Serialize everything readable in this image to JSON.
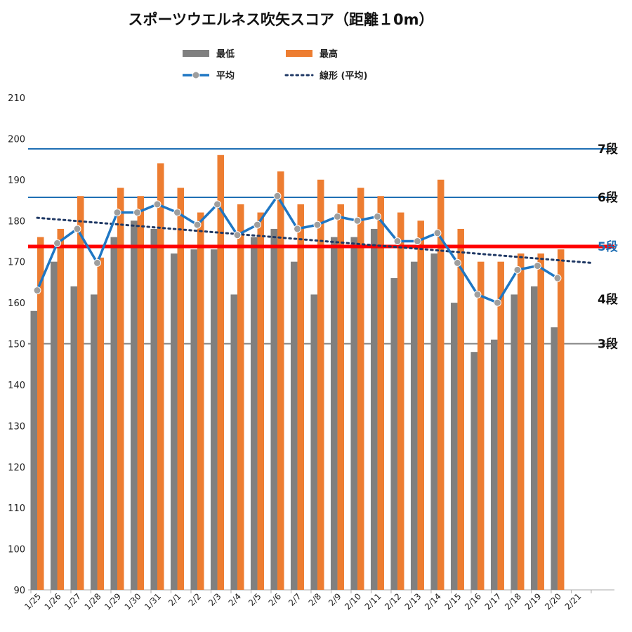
{
  "chart_data": {
    "type": "bar",
    "title": "スポーツウエルネス吹矢スコア（距離１0m）",
    "categories": [
      "1/25",
      "1/26",
      "1/27",
      "1/28",
      "1/29",
      "1/30",
      "1/31",
      "2/1",
      "2/2",
      "2/3",
      "2/4",
      "2/5",
      "2/6",
      "2/7",
      "2/8",
      "2/9",
      "2/10",
      "2/11",
      "2/12",
      "2/13",
      "2/14",
      "2/15",
      "2/16",
      "2/17",
      "2/18",
      "2/19",
      "2/20",
      "2/21"
    ],
    "series": [
      {
        "name": "最低",
        "type": "bar",
        "color": "#808080",
        "values": [
          158,
          170,
          164,
          162,
          176,
          180,
          178,
          172,
          173,
          173,
          162,
          176,
          178,
          170,
          162,
          176,
          176,
          178,
          166,
          170,
          172,
          160,
          148,
          151,
          162,
          164,
          154,
          null
        ]
      },
      {
        "name": "最高",
        "type": "bar",
        "color": "#ED7D31",
        "values": [
          176,
          178,
          186,
          171,
          188,
          186,
          194,
          188,
          182,
          196,
          184,
          182,
          192,
          184,
          190,
          184,
          188,
          186,
          182,
          180,
          190,
          178,
          170,
          170,
          172,
          172,
          173,
          null
        ]
      },
      {
        "name": "平均",
        "type": "line",
        "color": "#1F77C4",
        "values": [
          163,
          174.5,
          178,
          169.7,
          182,
          182,
          184,
          182,
          179,
          184,
          176.5,
          179,
          186,
          178,
          179,
          181,
          180,
          181,
          175,
          175,
          177,
          169.7,
          162,
          160,
          168,
          169,
          166,
          null
        ]
      },
      {
        "name": "線形 (平均)",
        "type": "trendline",
        "color": "#1F3864",
        "start": [
          0,
          180.7
        ],
        "end": [
          27.7,
          169.7
        ]
      }
    ],
    "ylim": [
      90,
      210
    ],
    "yticks": [
      "90",
      "100",
      "110",
      "120",
      "130",
      "140",
      "150",
      "160",
      "170",
      "180",
      "190",
      "200",
      "210"
    ],
    "legend_position": "top",
    "grid": false,
    "reference_lines": [
      {
        "label": "7段",
        "value": 197.5,
        "color": "#1F6FB4",
        "label_color": "#111111"
      },
      {
        "label": "6段",
        "value": 185.7,
        "color": "#1F6FB4",
        "label_color": "#111111"
      },
      {
        "label": "5段",
        "value": 173.7,
        "color": "#FF0000",
        "label_color": "#1F6FB4"
      },
      {
        "label": "4段",
        "value": 160.9,
        "color": null,
        "label_color": "#111111"
      },
      {
        "label": "3段",
        "value": 150,
        "color": "#808080",
        "label_color": "#111111"
      }
    ]
  }
}
